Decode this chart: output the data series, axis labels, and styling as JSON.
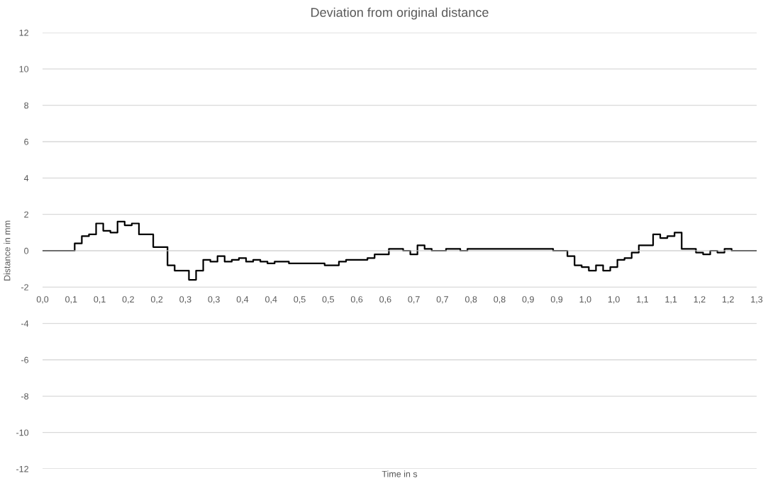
{
  "chart_data": {
    "type": "step",
    "title": "Deviation from original distance",
    "xlabel": "Time in s",
    "ylabel": "Distance in mm",
    "categories": [
      "0,0",
      null,
      null,
      null,
      "0,1",
      null,
      null,
      null,
      "0,1",
      null,
      null,
      null,
      "0,2",
      null,
      null,
      null,
      "0,2",
      null,
      null,
      null,
      "0,3",
      null,
      null,
      null,
      "0,3",
      null,
      null,
      null,
      "0,4",
      null,
      null,
      null,
      "0,4",
      null,
      null,
      null,
      "0,5",
      null,
      null,
      null,
      "0,5",
      null,
      null,
      null,
      "0,6",
      null,
      null,
      null,
      "0,6",
      null,
      null,
      null,
      "0,7",
      null,
      null,
      null,
      "0,7",
      null,
      null,
      null,
      "0,8",
      null,
      null,
      null,
      "0,8",
      null,
      null,
      null,
      "0,9",
      null,
      null,
      null,
      "0,9",
      null,
      null,
      null,
      "1,0",
      null,
      null,
      null,
      "1,0",
      null,
      null,
      null,
      "1,1",
      null,
      null,
      null,
      "1,1",
      null,
      null,
      null,
      "1,2",
      null,
      null,
      null,
      "1,2",
      null,
      null,
      null,
      "1,3"
    ],
    "series": [
      {
        "color": "#000000",
        "values": [
          0,
          0,
          0,
          0,
          0,
          0.4,
          0.8,
          0.9,
          1.5,
          1.1,
          1.0,
          1.6,
          1.4,
          1.5,
          0.9,
          0.9,
          0.2,
          0.2,
          -0.8,
          -1.1,
          -1.1,
          -1.6,
          -1.1,
          -0.5,
          -0.6,
          -0.3,
          -0.6,
          -0.5,
          -0.4,
          -0.6,
          -0.5,
          -0.6,
          -0.7,
          -0.6,
          -0.6,
          -0.7,
          -0.7,
          -0.7,
          -0.7,
          -0.7,
          -0.8,
          -0.8,
          -0.6,
          -0.5,
          -0.5,
          -0.5,
          -0.4,
          -0.2,
          -0.2,
          0.1,
          0.1,
          0,
          -0.2,
          0.3,
          0.1,
          0,
          0,
          0.1,
          0.1,
          0,
          0.1,
          0.1,
          0.1,
          0.1,
          0.1,
          0.1,
          0.1,
          0.1,
          0.1,
          0.1,
          0.1,
          0.1,
          0,
          0,
          -0.3,
          -0.8,
          -0.9,
          -1.1,
          -0.8,
          -1.1,
          -0.9,
          -0.5,
          -0.4,
          -0.1,
          0.3,
          0.3,
          0.9,
          0.7,
          0.8,
          1.0,
          0.1,
          0.1,
          -0.1,
          -0.2,
          0,
          -0.1,
          0.1,
          0,
          0,
          0,
          0
        ]
      }
    ],
    "ylim": [
      -12,
      12
    ],
    "yticks": [
      -12,
      -10,
      -8,
      -6,
      -4,
      -2,
      0,
      2,
      4,
      6,
      8,
      10,
      12
    ],
    "grid": "y",
    "marker": "none",
    "line_style": "solid"
  }
}
